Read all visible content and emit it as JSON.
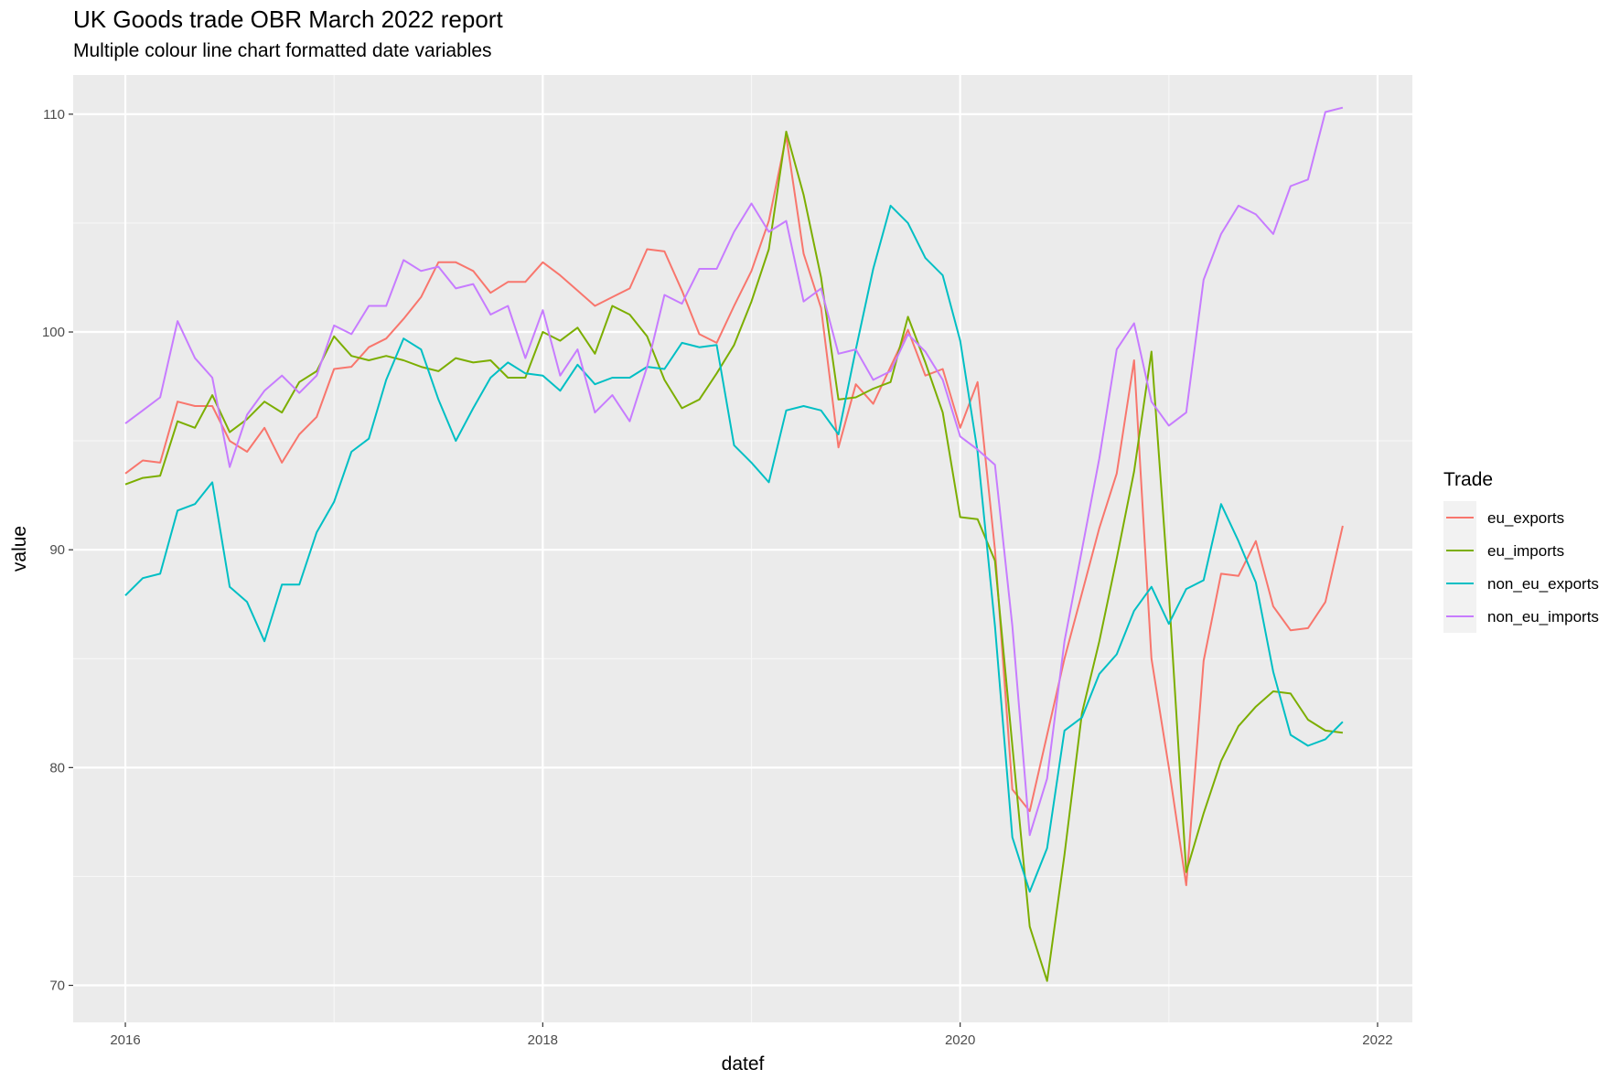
{
  "chart_data": {
    "type": "line",
    "title": "UK Goods trade OBR March 2022 report",
    "subtitle": "Multiple colour line chart formatted date variables",
    "xlabel": "datef",
    "ylabel": "value",
    "x_start": "2016-01",
    "x_frequency": "monthly",
    "xlim": [
      "2015-10",
      "2022-03"
    ],
    "ylim": [
      68.3,
      111.8
    ],
    "x_ticks": [
      "2016",
      "2018",
      "2020",
      "2022"
    ],
    "y_ticks": [
      70,
      80,
      90,
      100,
      110
    ],
    "grid": true,
    "legend": {
      "title": "Trade",
      "position": "right"
    },
    "series": [
      {
        "name": "eu_exports",
        "color": "#F8766D",
        "values": [
          93.5,
          94.1,
          94.0,
          96.8,
          96.6,
          96.6,
          95.0,
          94.5,
          95.6,
          94.0,
          95.3,
          96.1,
          98.3,
          98.4,
          99.3,
          99.7,
          100.6,
          101.6,
          103.2,
          103.2,
          102.8,
          101.8,
          102.3,
          102.3,
          103.2,
          102.6,
          101.9,
          101.2,
          101.6,
          102.0,
          103.8,
          103.7,
          101.9,
          99.9,
          99.5,
          101.2,
          102.8,
          105.1,
          109.0,
          103.6,
          101.1,
          94.7,
          97.6,
          96.7,
          98.4,
          100.1,
          98.0,
          98.3,
          95.6,
          97.7,
          90.0,
          79.0,
          78.0,
          81.5,
          85.0,
          88.0,
          91.0,
          93.5,
          98.7,
          85.0,
          80.0,
          74.6,
          84.9,
          88.9,
          88.8,
          90.4,
          87.4,
          86.3,
          86.4,
          87.6,
          91.1
        ]
      },
      {
        "name": "eu_imports",
        "color": "#7CAE00",
        "values": [
          93.0,
          93.3,
          93.4,
          95.9,
          95.6,
          97.1,
          95.4,
          96.0,
          96.8,
          96.3,
          97.7,
          98.2,
          99.8,
          98.9,
          98.7,
          98.9,
          98.7,
          98.4,
          98.2,
          98.8,
          98.6,
          98.7,
          97.9,
          97.9,
          100.0,
          99.6,
          100.2,
          99.0,
          101.2,
          100.8,
          99.8,
          97.8,
          96.5,
          96.9,
          98.1,
          99.4,
          101.4,
          103.8,
          109.2,
          106.3,
          102.5,
          96.9,
          97.0,
          97.4,
          97.7,
          100.7,
          98.6,
          96.3,
          91.5,
          91.4,
          89.5,
          81.0,
          72.7,
          70.2,
          76.0,
          82.5,
          85.8,
          89.6,
          93.6,
          99.1,
          88.0,
          75.2,
          77.9,
          80.3,
          81.9,
          82.8,
          83.5,
          83.4,
          82.2,
          81.7,
          81.6
        ]
      },
      {
        "name": "non_eu_exports",
        "color": "#00BFC4",
        "values": [
          87.9,
          88.7,
          88.9,
          91.8,
          92.1,
          93.1,
          88.3,
          87.6,
          85.8,
          88.4,
          88.4,
          90.8,
          92.2,
          94.5,
          95.1,
          97.8,
          99.7,
          99.2,
          96.9,
          95.0,
          96.5,
          97.9,
          98.6,
          98.1,
          98.0,
          97.3,
          98.5,
          97.6,
          97.9,
          97.9,
          98.4,
          98.3,
          99.5,
          99.3,
          99.4,
          94.8,
          94.0,
          93.1,
          96.4,
          96.6,
          96.4,
          95.3,
          99.2,
          102.9,
          105.8,
          105.0,
          103.4,
          102.6,
          99.6,
          94.5,
          86.5,
          76.8,
          74.3,
          76.3,
          81.7,
          82.3,
          84.3,
          85.2,
          87.2,
          88.3,
          86.6,
          88.2,
          88.6,
          92.1,
          90.4,
          88.5,
          84.4,
          81.5,
          81.0,
          81.3,
          82.1
        ]
      },
      {
        "name": "non_eu_imports",
        "color": "#C77CFF",
        "values": [
          95.8,
          96.4,
          97.0,
          100.5,
          98.8,
          97.9,
          93.8,
          96.2,
          97.3,
          98.0,
          97.2,
          98.0,
          100.3,
          99.9,
          101.2,
          101.2,
          103.3,
          102.8,
          103.0,
          102.0,
          102.2,
          100.8,
          101.2,
          98.8,
          101.0,
          98.0,
          99.2,
          96.3,
          97.1,
          95.9,
          98.4,
          101.7,
          101.3,
          102.9,
          102.9,
          104.6,
          105.9,
          104.6,
          105.1,
          101.4,
          102.0,
          99.0,
          99.2,
          97.8,
          98.2,
          99.9,
          99.1,
          97.8,
          95.2,
          94.6,
          93.9,
          86.5,
          76.9,
          79.5,
          85.8,
          90.0,
          94.2,
          99.2,
          100.4,
          96.8,
          95.7,
          96.3,
          102.4,
          104.5,
          105.8,
          105.4,
          104.5,
          106.7,
          107.0,
          110.1,
          110.3
        ]
      }
    ]
  }
}
